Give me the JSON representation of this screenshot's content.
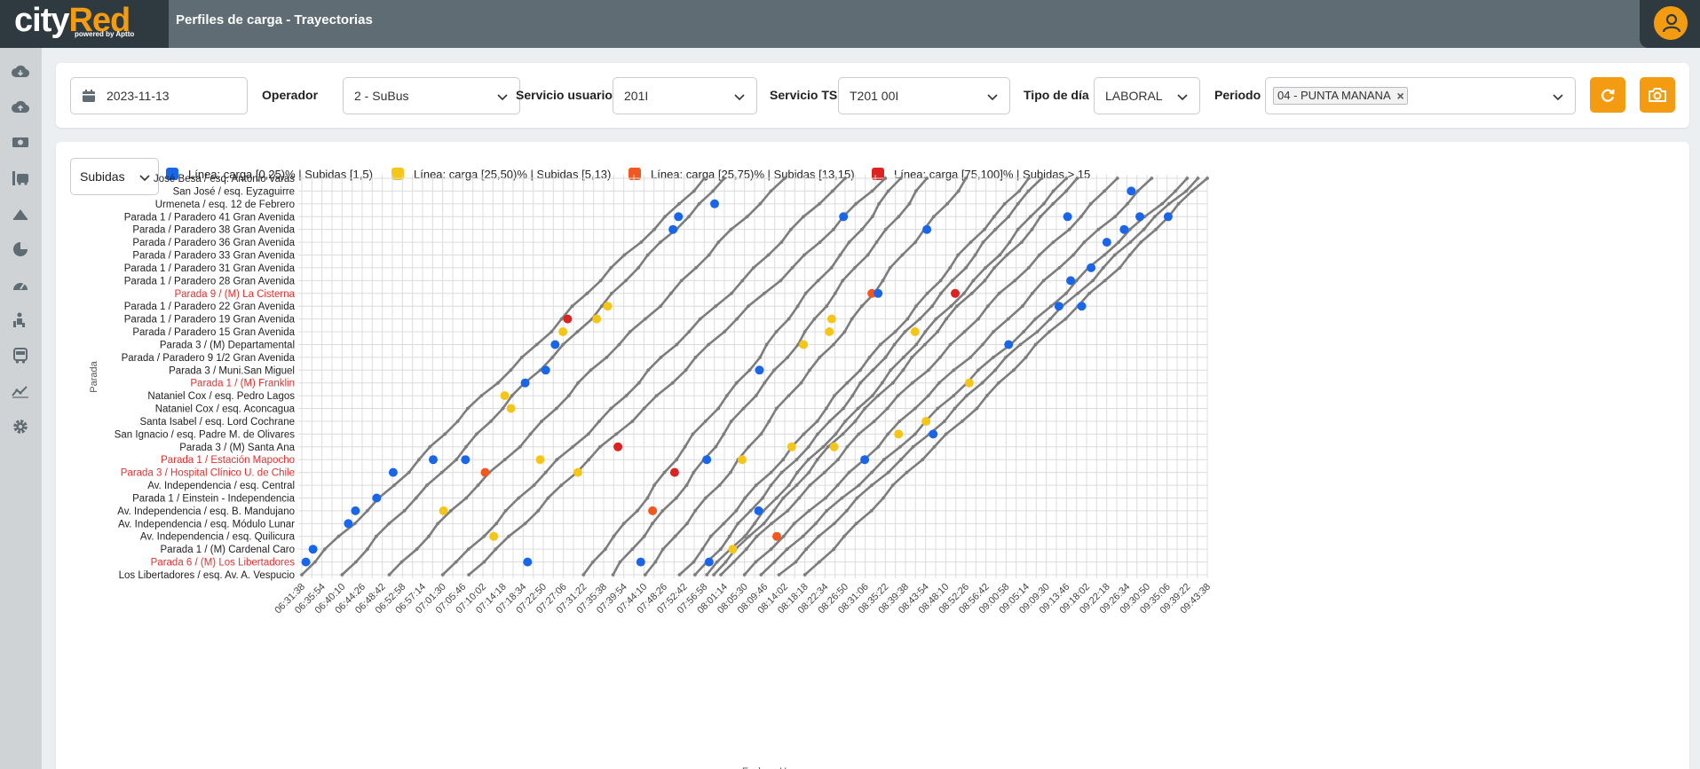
{
  "app": {
    "logo_main_a": "city",
    "logo_main_b": "Red",
    "logo_sub": "powered by Aptto",
    "title": "Perfiles de carga - Trayectorias"
  },
  "sidebar": {
    "items": [
      "cloud-download-icon",
      "cloud-upload-icon",
      "money-icon",
      "bus-stop-icon",
      "load-icon",
      "pie-chart-icon",
      "gauge-icon",
      "passenger-icon",
      "bus-icon",
      "trend-icon",
      "gear-icon"
    ]
  },
  "filters": {
    "date": "2023-11-13",
    "operador_label": "Operador",
    "operador_value": "2 - SuBus",
    "servicio_usuario_label": "Servicio usuario",
    "servicio_usuario_value": "201I",
    "servicio_ts_label": "Servicio TS",
    "servicio_ts_value": "T201 00I",
    "tipo_dia_label": "Tipo de día",
    "tipo_dia_value": "LABORAL",
    "periodo_label": "Periodo",
    "periodo_tag": "04 - PUNTA MANANA"
  },
  "chart_controls": {
    "metric": "Subidas",
    "legend": [
      {
        "label": "Línea: carga [0,25)% | Subidas [1,5)",
        "color": "#1a66e8"
      },
      {
        "label": "Línea: carga [25,50)% | Subidas [5,13)",
        "color": "#f5c518"
      },
      {
        "label": "Línea: carga [25,75)% | Subidas [13,15)",
        "color": "#f2571f"
      },
      {
        "label": "Línea: carga [75,100]% | Subidas > 15",
        "color": "#dd2222"
      }
    ]
  },
  "chart_data": {
    "type": "line",
    "xlabel": "Fecha y Hora",
    "ylabel": "Parada",
    "x_ticks": [
      "06:31:38",
      "06:35:54",
      "06:40:10",
      "06:44:26",
      "06:48:42",
      "06:52:58",
      "06:57:14",
      "07:01:30",
      "07:05:46",
      "07:10:02",
      "07:14:18",
      "07:18:34",
      "07:22:50",
      "07:27:06",
      "07:31:22",
      "07:35:38",
      "07:39:54",
      "07:44:10",
      "07:48:26",
      "07:52:42",
      "07:56:58",
      "08:01:14",
      "08:05:30",
      "08:09:46",
      "08:14:02",
      "08:18:18",
      "08:22:34",
      "08:26:50",
      "08:31:06",
      "08:35:22",
      "08:39:38",
      "08:43:54",
      "08:48:10",
      "08:52:26",
      "08:56:42",
      "09:00:58",
      "09:05:14",
      "09:09:30",
      "09:13:46",
      "09:18:02",
      "09:22:18",
      "09:26:34",
      "09:30:50",
      "09:35:06",
      "09:39:22",
      "09:43:38"
    ],
    "stops": [
      {
        "name": "José Besa / esq. Antonio Varas",
        "highlight": false
      },
      {
        "name": "San José / esq. Eyzaguirre",
        "highlight": false
      },
      {
        "name": "Urmeneta / esq. 12 de Febrero",
        "highlight": false
      },
      {
        "name": "Parada 1 / Paradero 41 Gran Avenida",
        "highlight": false
      },
      {
        "name": "Parada / Paradero 38 Gran Avenida",
        "highlight": false
      },
      {
        "name": "Parada / Paradero 36 Gran Avenida",
        "highlight": false
      },
      {
        "name": "Parada / Paradero 33 Gran Avenida",
        "highlight": false
      },
      {
        "name": "Parada 1 / Paradero 31 Gran Avenida",
        "highlight": false
      },
      {
        "name": "Parada 1 / Paradero 28 Gran Avenida",
        "highlight": false
      },
      {
        "name": "Parada 9 / (M) La Cisterna",
        "highlight": true
      },
      {
        "name": "Parada 1 / Paradero 22 Gran Avenida",
        "highlight": false
      },
      {
        "name": "Parada 1 / Paradero 19 Gran Avenida",
        "highlight": false
      },
      {
        "name": "Parada / Paradero 15 Gran Avenida",
        "highlight": false
      },
      {
        "name": "Parada 3 / (M) Departamental",
        "highlight": false
      },
      {
        "name": "Parada / Paradero 9 1/2 Gran Avenida",
        "highlight": false
      },
      {
        "name": "Parada 3 / Muni.San Miguel",
        "highlight": false
      },
      {
        "name": "Parada 1 / (M) Franklin",
        "highlight": true
      },
      {
        "name": "Nataniel Cox / esq. Pedro Lagos",
        "highlight": false
      },
      {
        "name": "Nataniel Cox / esq. Aconcagua",
        "highlight": false
      },
      {
        "name": "Santa Isabel / esq. Lord Cochrane",
        "highlight": false
      },
      {
        "name": "San Ignacio / esq. Padre M. de Olivares",
        "highlight": false
      },
      {
        "name": "Parada 3 / (M) Santa Ana",
        "highlight": false
      },
      {
        "name": "Parada 1 / Estación Mapocho",
        "highlight": true
      },
      {
        "name": "Parada 3 / Hospital Clínico U. de Chile",
        "highlight": true
      },
      {
        "name": "Av. Independencia / esq. Central",
        "highlight": false
      },
      {
        "name": "Parada 1 / Einstein - Independencia",
        "highlight": false
      },
      {
        "name": "Av. Independencia / esq. B. Mandujano",
        "highlight": false
      },
      {
        "name": "Av. Independencia / esq. Módulo Lunar",
        "highlight": false
      },
      {
        "name": "Av. Independencia / esq. Quilicura",
        "highlight": false
      },
      {
        "name": "Parada 1 / (M) Cardenal Caro",
        "highlight": false
      },
      {
        "name": "Parada 6 / (M) Los Libertadores",
        "highlight": true
      },
      {
        "name": "Los Libertadores / esq. Av. A. Vespucio",
        "highlight": false
      }
    ],
    "series": [
      {
        "start": "06:31:38",
        "end": "07:56:58"
      },
      {
        "start": "06:40:10",
        "end": "08:01:14"
      },
      {
        "start": "06:50:10",
        "end": "08:14:02"
      },
      {
        "start": "07:01:30",
        "end": "08:26:50"
      },
      {
        "start": "07:07:02",
        "end": "08:35:22"
      },
      {
        "start": "07:31:22",
        "end": "08:38:38"
      },
      {
        "start": "07:37:38",
        "end": "08:44:10"
      },
      {
        "start": "07:44:26",
        "end": "08:52:26"
      },
      {
        "start": "07:51:42",
        "end": "09:05:46"
      },
      {
        "start": "07:55:00",
        "end": "09:08:30"
      },
      {
        "start": "07:57:30",
        "end": "09:13:46"
      },
      {
        "start": "07:59:00",
        "end": "09:16:02"
      },
      {
        "start": "08:00:30",
        "end": "09:24:34"
      },
      {
        "start": "08:05:30",
        "end": "09:31:50"
      },
      {
        "start": "08:09:00",
        "end": "09:39:22"
      },
      {
        "start": "08:12:50",
        "end": "09:41:38"
      },
      {
        "start": "08:18:18",
        "end": "09:43:38"
      }
    ],
    "markers": [
      {
        "time": "06:32:30",
        "stop": "Parada 6 / (M) Los Libertadores",
        "level": 0
      },
      {
        "time": "06:34:00",
        "stop": "Parada 1 / (M) Cardenal Caro",
        "level": 0
      },
      {
        "time": "06:41:30",
        "stop": "Av. Independencia / esq. Módulo Lunar",
        "level": 0
      },
      {
        "time": "06:43:00",
        "stop": "Av. Independencia / esq. B. Mandujano",
        "level": 0
      },
      {
        "time": "06:47:30",
        "stop": "Parada 1 / Einstein - Independencia",
        "level": 0
      },
      {
        "time": "06:51:00",
        "stop": "Parada 3 / Hospital Clínico U. de Chile",
        "level": 0
      },
      {
        "time": "06:59:30",
        "stop": "Parada 1 / Estación Mapocho",
        "level": 0
      },
      {
        "time": "07:06:20",
        "stop": "Parada 1 / Estación Mapocho",
        "level": 0
      },
      {
        "time": "07:10:30",
        "stop": "Parada 3 / Hospital Clínico U. de Chile",
        "level": 2
      },
      {
        "time": "07:14:40",
        "stop": "Nataniel Cox / esq. Pedro Lagos",
        "level": 1
      },
      {
        "time": "07:16:00",
        "stop": "Nataniel Cox / esq. Aconcagua",
        "level": 1
      },
      {
        "time": "07:19:00",
        "stop": "Parada 1 / (M) Franklin",
        "level": 0
      },
      {
        "time": "07:23:20",
        "stop": "Parada 3 / Muni.San Miguel",
        "level": 0
      },
      {
        "time": "07:25:20",
        "stop": "Parada 3 / (M) Departamental",
        "level": 0
      },
      {
        "time": "07:27:00",
        "stop": "Parada / Paradero 15 Gran Avenida",
        "level": 1
      },
      {
        "time": "07:28:00",
        "stop": "Parada 1 / Paradero 19 Gran Avenida",
        "level": 3
      },
      {
        "time": "07:34:10",
        "stop": "Parada 1 / Paradero 19 Gran Avenida",
        "level": 1
      },
      {
        "time": "07:36:30",
        "stop": "Parada 1 / Paradero 22 Gran Avenida",
        "level": 1
      },
      {
        "time": "07:50:20",
        "stop": "Parada / Paradero 38 Gran Avenida",
        "level": 0
      },
      {
        "time": "07:51:30",
        "stop": "Parada 1 / Paradero 41 Gran Avenida",
        "level": 0
      },
      {
        "time": "07:59:10",
        "stop": "Urmeneta / esq. 12 de Febrero",
        "level": 0
      },
      {
        "time": "07:01:40",
        "stop": "Av. Independencia / esq. B. Mandujano",
        "level": 1
      },
      {
        "time": "07:12:20",
        "stop": "Av. Independencia / esq. Quilicura",
        "level": 1
      },
      {
        "time": "07:22:10",
        "stop": "Parada 1 / Estación Mapocho",
        "level": 1
      },
      {
        "time": "07:30:10",
        "stop": "Parada 3 / Hospital Clínico U. de Chile",
        "level": 1
      },
      {
        "time": "07:38:40",
        "stop": "Parada 3 / (M) Santa Ana",
        "level": 3
      },
      {
        "time": "07:46:00",
        "stop": "Av. Independencia / esq. B. Mandujano",
        "level": 2
      },
      {
        "time": "07:50:40",
        "stop": "Parada 3 / Hospital Clínico U. de Chile",
        "level": 3
      },
      {
        "time": "07:57:30",
        "stop": "Parada 1 / Estación Mapocho",
        "level": 0
      },
      {
        "time": "08:05:00",
        "stop": "Parada 1 / Estación Mapocho",
        "level": 1
      },
      {
        "time": "08:15:30",
        "stop": "Parada 3 / (M) Santa Ana",
        "level": 1
      },
      {
        "time": "08:08:40",
        "stop": "Parada 3 / Muni.San Miguel",
        "level": 0
      },
      {
        "time": "08:18:00",
        "stop": "Parada 3 / (M) Departamental",
        "level": 1
      },
      {
        "time": "08:23:30",
        "stop": "Parada / Paradero 15 Gran Avenida",
        "level": 1
      },
      {
        "time": "08:24:00",
        "stop": "Parada 1 / Paradero 19 Gran Avenida",
        "level": 1
      },
      {
        "time": "08:32:30",
        "stop": "Parada 9 / (M) La Cisterna",
        "level": 2
      },
      {
        "time": "08:33:50",
        "stop": "Parada 9 / (M) La Cisterna",
        "level": 0
      },
      {
        "time": "08:50:10",
        "stop": "Parada 9 / (M) La Cisterna",
        "level": 3
      },
      {
        "time": "08:41:40",
        "stop": "Parada / Paradero 15 Gran Avenida",
        "level": 1
      },
      {
        "time": "08:26:30",
        "stop": "Parada 1 / Paradero 41 Gran Avenida",
        "level": 0
      },
      {
        "time": "08:44:10",
        "stop": "Parada / Paradero 38 Gran Avenida",
        "level": 0
      },
      {
        "time": "08:53:10",
        "stop": "Parada 1 / (M) Franklin",
        "level": 1
      },
      {
        "time": "08:45:30",
        "stop": "San Ignacio / esq. Padre M. de Olivares",
        "level": 0
      },
      {
        "time": "08:44:00",
        "stop": "Santa Isabel / esq. Lord Cochrane",
        "level": 1
      },
      {
        "time": "08:38:10",
        "stop": "San Ignacio / esq. Padre M. de Olivares",
        "level": 1
      },
      {
        "time": "08:31:00",
        "stop": "Parada 1 / Estación Mapocho",
        "level": 0
      },
      {
        "time": "08:24:30",
        "stop": "Parada 3 / (M) Santa Ana",
        "level": 1
      },
      {
        "time": "08:12:20",
        "stop": "Av. Independencia / esq. Quilicura",
        "level": 2
      },
      {
        "time": "08:08:30",
        "stop": "Av. Independencia / esq. B. Mandujano",
        "level": 0
      },
      {
        "time": "08:03:00",
        "stop": "Parada 1 / (M) Cardenal Caro",
        "level": 1
      },
      {
        "time": "07:58:00",
        "stop": "Parada 6 / (M) Los Libertadores",
        "level": 0
      },
      {
        "time": "07:43:30",
        "stop": "Parada 6 / (M) Los Libertadores",
        "level": 0
      },
      {
        "time": "07:19:30",
        "stop": "Parada 6 / (M) Los Libertadores",
        "level": 0
      },
      {
        "time": "09:01:30",
        "stop": "Parada 3 / (M) Departamental",
        "level": 0
      },
      {
        "time": "09:12:10",
        "stop": "Parada 1 / Paradero 22 Gran Avenida",
        "level": 0
      },
      {
        "time": "09:14:40",
        "stop": "Parada 1 / Paradero 28 Gran Avenida",
        "level": 0
      },
      {
        "time": "09:19:00",
        "stop": "Parada 1 / Paradero 31 Gran Avenida",
        "level": 0
      },
      {
        "time": "09:22:20",
        "stop": "Parada / Paradero 36 Gran Avenida",
        "level": 0
      },
      {
        "time": "09:26:00",
        "stop": "Parada / Paradero 38 Gran Avenida",
        "level": 0
      },
      {
        "time": "09:29:20",
        "stop": "Parada 1 / Paradero 41 Gran Avenida",
        "level": 0
      },
      {
        "time": "09:35:20",
        "stop": "Parada 1 / Paradero 41 Gran Avenida",
        "level": 0
      },
      {
        "time": "09:27:30",
        "stop": "San José / esq. Eyzaguirre",
        "level": 0
      },
      {
        "time": "09:14:00",
        "stop": "Parada 1 / Paradero 41 Gran Avenida",
        "level": 0
      },
      {
        "time": "09:17:00",
        "stop": "Parada 1 / Paradero 22 Gran Avenida",
        "level": 0
      }
    ]
  }
}
